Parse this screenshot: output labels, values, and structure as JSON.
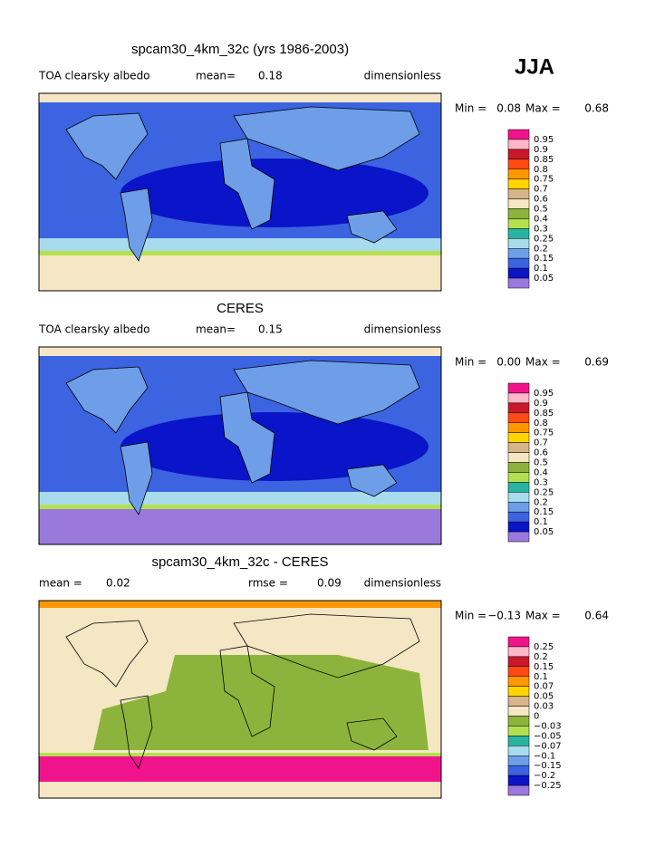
{
  "header": {
    "season": "JJA"
  },
  "panels": [
    {
      "title": "spcam30_4km_32c (yrs 1986-2003)",
      "variable": "TOA clearsky albedo",
      "stats": [
        {
          "label": "mean=",
          "value": "0.18"
        }
      ],
      "units": "dimensionless",
      "min_label": "Min =",
      "min": "0.08",
      "max_label": "Max =",
      "max": "0.68",
      "colorbar": {
        "labels": [
          "0.95",
          "0.9",
          "0.85",
          "0.8",
          "0.75",
          "0.7",
          "0.6",
          "0.5",
          "0.4",
          "0.3",
          "0.25",
          "0.2",
          "0.15",
          "0.1",
          "0.05"
        ],
        "colors": [
          "#f0148c",
          "#ffb6c8",
          "#c8182c",
          "#ff4a14",
          "#ff9800",
          "#ffd400",
          "#d8b48a",
          "#f5e6c4",
          "#8cb43c",
          "#b4e050",
          "#28b4a0",
          "#a8dcec",
          "#6e9ee8",
          "#3c64e0",
          "#0a14c8",
          "#9a78dc"
        ]
      }
    },
    {
      "title": "CERES",
      "variable": "TOA clearsky albedo",
      "stats": [
        {
          "label": "mean=",
          "value": "0.15"
        }
      ],
      "units": "dimensionless",
      "min_label": "Min =",
      "min": "0.00",
      "max_label": "Max =",
      "max": "0.69",
      "colorbar": {
        "labels": [
          "0.95",
          "0.9",
          "0.85",
          "0.8",
          "0.75",
          "0.7",
          "0.6",
          "0.5",
          "0.4",
          "0.3",
          "0.25",
          "0.2",
          "0.15",
          "0.1",
          "0.05"
        ],
        "colors": [
          "#f0148c",
          "#ffb6c8",
          "#c8182c",
          "#ff4a14",
          "#ff9800",
          "#ffd400",
          "#d8b48a",
          "#f5e6c4",
          "#8cb43c",
          "#b4e050",
          "#28b4a0",
          "#a8dcec",
          "#6e9ee8",
          "#3c64e0",
          "#0a14c8",
          "#9a78dc"
        ]
      }
    },
    {
      "title": "spcam30_4km_32c - CERES",
      "stats": [
        {
          "label": "mean =",
          "value": "0.02"
        },
        {
          "label": "rmse =",
          "value": "0.09"
        }
      ],
      "units": "dimensionless",
      "min_label": "Min =",
      "min": "−0.13",
      "max_label": "Max =",
      "max": "0.64",
      "colorbar": {
        "labels": [
          "0.25",
          "0.2",
          "0.15",
          "0.1",
          "0.07",
          "0.05",
          "0.03",
          "0",
          "−0.03",
          "−0.05",
          "−0.07",
          "−0.1",
          "−0.15",
          "−0.2",
          "−0.25"
        ],
        "colors": [
          "#f0148c",
          "#ffb6c8",
          "#c8182c",
          "#ff4a14",
          "#ff9800",
          "#ffd400",
          "#d8b48a",
          "#f5e6c4",
          "#8cb43c",
          "#b4e050",
          "#28b4a0",
          "#a8dcec",
          "#6e9ee8",
          "#3c64e0",
          "#0a14c8",
          "#9a78dc"
        ]
      }
    }
  ]
}
